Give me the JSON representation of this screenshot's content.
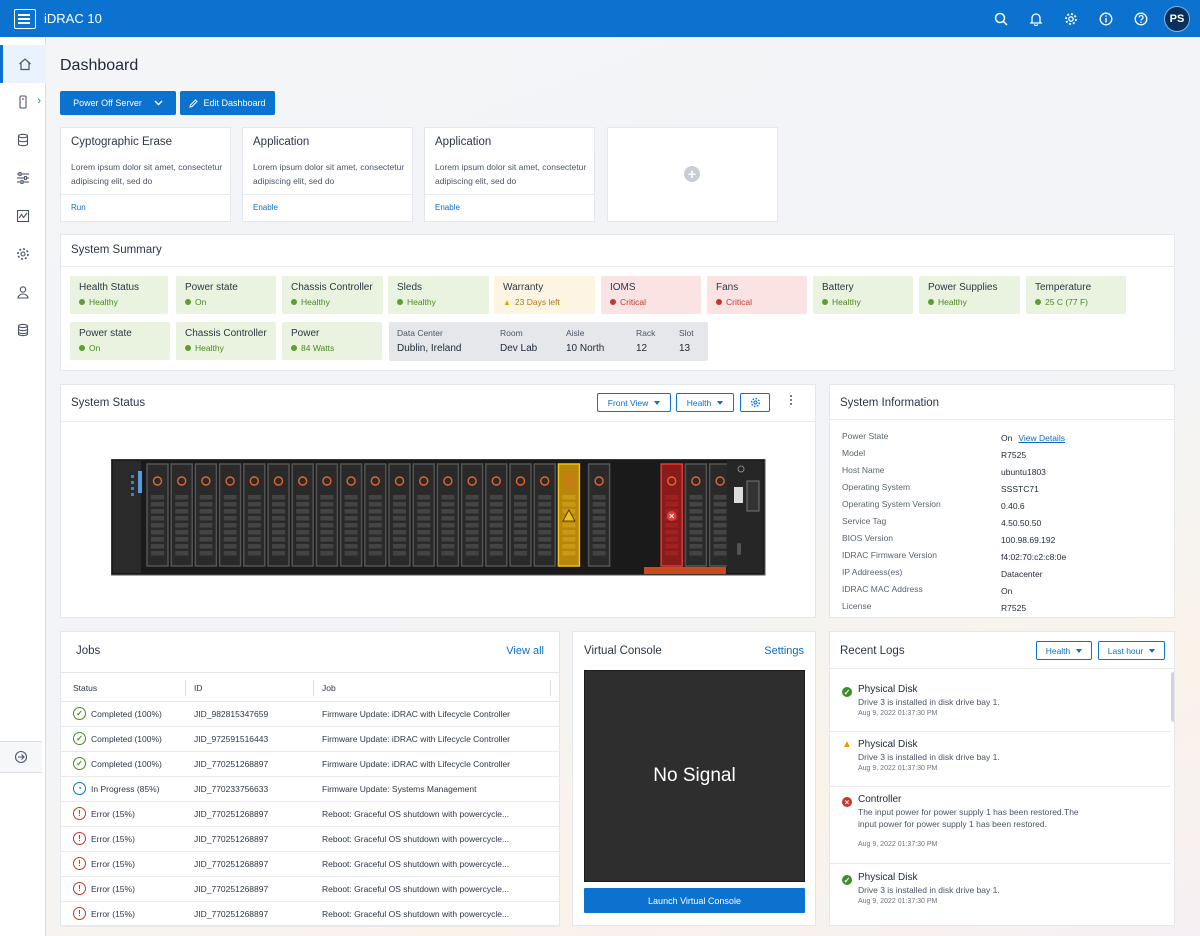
{
  "app": {
    "title": "iDRAC 10",
    "user_initials": "PS"
  },
  "topbar_icons": [
    "search-icon",
    "bell-icon",
    "gear-icon",
    "info-icon",
    "help-icon"
  ],
  "sidebar": {
    "items": [
      "home-icon",
      "server-icon",
      "storage-icon",
      "sliders-icon",
      "chart-icon",
      "settings-icon",
      "user-icon",
      "database-icon"
    ],
    "collapse_icon": "arrow-right-circle-icon"
  },
  "page": {
    "title": "Dashboard"
  },
  "actions": {
    "power_off": "Power Off Server",
    "edit_dashboard": "Edit Dashboard"
  },
  "cards": [
    {
      "title": "Cyptographic Erase",
      "desc": "Lorem ipsum dolor sit amet, consectetur adipiscing elit, sed do",
      "link": "Run"
    },
    {
      "title": "Application",
      "desc": "Lorem ipsum dolor sit amet, consectetur adipiscing elit, sed do",
      "link": "Enable"
    },
    {
      "title": "Application",
      "desc": "Lorem ipsum dolor sit amet, consectetur adipiscing elit, sed do",
      "link": "Enable"
    }
  ],
  "summary": {
    "title": "System Summary",
    "row1": [
      {
        "label": "Health Status",
        "status": "Healthy",
        "tone": "green"
      },
      {
        "label": "Power state",
        "status": "On",
        "tone": "green"
      },
      {
        "label": "Chassis Controller",
        "status": "Healthy",
        "tone": "green"
      },
      {
        "label": "Sleds",
        "status": "Healthy",
        "tone": "green"
      },
      {
        "label": "Warranty",
        "status": "23 Days left",
        "tone": "yellow"
      },
      {
        "label": "IOMS",
        "status": "Critical",
        "tone": "red"
      },
      {
        "label": "Fans",
        "status": "Critical",
        "tone": "red"
      },
      {
        "label": "Battery",
        "status": "Healthy",
        "tone": "green"
      },
      {
        "label": "Power Supplies",
        "status": "Healthy",
        "tone": "green"
      },
      {
        "label": "Temperature",
        "status": "25 C (77 F)",
        "tone": "green"
      }
    ],
    "row2": [
      {
        "label": "Power state",
        "status": "On",
        "tone": "green"
      },
      {
        "label": "Chassis Controller",
        "status": "Healthy",
        "tone": "green"
      },
      {
        "label": "Power",
        "status": "84 Watts",
        "tone": "green"
      }
    ],
    "location": {
      "data_center": {
        "k": "Data Center",
        "v": "Dublin, Ireland"
      },
      "room": {
        "k": "Room",
        "v": "Dev Lab"
      },
      "aisle": {
        "k": "Aisle",
        "v": "10 North"
      },
      "rack": {
        "k": "Rack",
        "v": "12"
      },
      "slot": {
        "k": "Slot",
        "v": "13"
      }
    }
  },
  "system_status": {
    "title": "System Status",
    "view": "Front View",
    "filter": "Health"
  },
  "system_info": {
    "title": "System Information",
    "rows": [
      {
        "k": "Power State",
        "v": "On",
        "link": "View Details"
      },
      {
        "k": "Model",
        "v": "R7525"
      },
      {
        "k": "Host Name",
        "v": "ubuntu1803"
      },
      {
        "k": "Operating System",
        "v": "SSSTC71"
      },
      {
        "k": "Operating System Version",
        "v": "0.40.6"
      },
      {
        "k": "Service Tag",
        "v": "4.50.50.50"
      },
      {
        "k": "BIOS Version",
        "v": "100.98.69.192"
      },
      {
        "k": "IDRAC Firmware Version",
        "v": "f4:02:70:c2:c8:0e"
      },
      {
        "k": "IP Addreess(es)",
        "v": "Datacenter"
      },
      {
        "k": "IDRAC MAC Address",
        "v": "On"
      },
      {
        "k": "License",
        "v": "R7525"
      }
    ]
  },
  "jobs": {
    "title": "Jobs",
    "view_all": "View all",
    "columns": [
      "Status",
      "ID",
      "Job"
    ],
    "rows": [
      {
        "status": "Completed (100%)",
        "kind": "ok",
        "id": "JID_982815347659",
        "job": "Firmware Update: iDRAC with Lifecycle Controller"
      },
      {
        "status": "Completed (100%)",
        "kind": "ok",
        "id": "JID_972591516443",
        "job": "Firmware Update: iDRAC with Lifecycle Controller"
      },
      {
        "status": "Completed (100%)",
        "kind": "ok",
        "id": "JID_770251268897",
        "job": "Firmware Update: iDRAC with Lifecycle Controller"
      },
      {
        "status": "In Progress (85%)",
        "kind": "prog",
        "id": "JID_770233756633",
        "job": "Firmware Update: Systems Management"
      },
      {
        "status": "Error (15%)",
        "kind": "err",
        "id": "JID_770251268897",
        "job": "Reboot: Graceful OS shutdown with powercycle..."
      },
      {
        "status": "Error (15%)",
        "kind": "err",
        "id": "JID_770251268897",
        "job": "Reboot: Graceful OS shutdown with powercycle..."
      },
      {
        "status": "Error (15%)",
        "kind": "err",
        "id": "JID_770251268897",
        "job": "Reboot: Graceful OS shutdown with powercycle..."
      },
      {
        "status": "Error (15%)",
        "kind": "err",
        "id": "JID_770251268897",
        "job": "Reboot: Graceful OS shutdown with powercycle..."
      },
      {
        "status": "Error (15%)",
        "kind": "err",
        "id": "JID_770251268897",
        "job": "Reboot: Graceful OS shutdown with powercycle..."
      }
    ]
  },
  "virtual_console": {
    "title": "Virtual Console",
    "settings": "Settings",
    "screen": "No Signal",
    "launch": "Launch Virtual Console"
  },
  "logs": {
    "title": "Recent Logs",
    "filter": "Health",
    "range": "Last hour",
    "items": [
      {
        "kind": "ok",
        "title": "Physical Disk",
        "desc": "Drive 3 is installed in disk drive bay 1.",
        "time": "Aug 9, 2022 01:37:30 PM"
      },
      {
        "kind": "warn",
        "title": "Physical Disk",
        "desc": "Drive 3 is installed in disk drive bay 1.",
        "time": "Aug 9, 2022 01:37:30 PM"
      },
      {
        "kind": "err",
        "title": "Controller",
        "desc": "The input power for power supply 1 has been restored.The input power for power supply 1 has been restored.",
        "time": "Aug 9, 2022 01:37:30 PM"
      },
      {
        "kind": "ok",
        "title": "Physical Disk",
        "desc": "Drive 3 is installed in disk drive bay 1.",
        "time": "Aug 9, 2022 01:37:30 PM"
      }
    ]
  },
  "colors": {
    "brand": "#0b72cf",
    "healthy": "#4a8a1f",
    "warning": "#e0a400",
    "critical": "#c0392b"
  }
}
